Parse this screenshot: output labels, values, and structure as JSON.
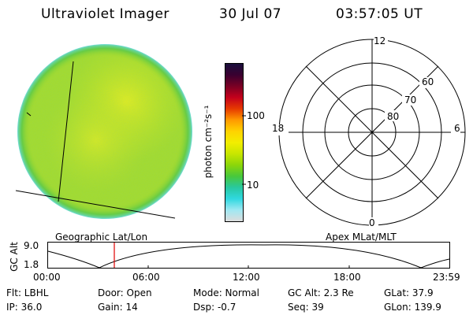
{
  "header": {
    "title": "Ultraviolet Imager",
    "date": "30 Jul 07",
    "time": "03:57:05 UT"
  },
  "colorbar": {
    "unit_label": "photon cm⁻²s⁻¹",
    "tick_100": "100",
    "tick_10": "10",
    "colors": [
      "#1a0f3c",
      "#3a0030",
      "#7a0024",
      "#c4001c",
      "#e63a00",
      "#ff9a00",
      "#ffd200",
      "#f2ee00",
      "#c8e600",
      "#8cd60a",
      "#48c83c",
      "#28c8a0",
      "#30d8e0",
      "#a0e8f2",
      "#dcdcdc"
    ]
  },
  "polar": {
    "mlt_top": "12",
    "mlt_left": "18",
    "mlt_right": "6",
    "mlt_bottom": "0",
    "lat_60": "60",
    "lat_70": "70",
    "lat_80": "80"
  },
  "strip": {
    "left_caption": "Geographic Lat/Lon",
    "right_caption": "Apex MLat/MLT",
    "y_axis_label": "GC Alt",
    "y_tick_top": "9.0",
    "y_tick_bottom": "1.8",
    "x_ticks": [
      "00:00",
      "06:00",
      "12:00",
      "18:00",
      "23:59"
    ],
    "marker_color": "#e00000"
  },
  "info": {
    "row1": {
      "flt": "Flt: LBHL",
      "door": "Door: Open",
      "mode": "Mode: Normal",
      "gcalt": "GC Alt: 2.3 Re",
      "glat": "GLat:  37.9"
    },
    "row2": {
      "ip": "IP: 36.0",
      "gain": "Gain: 14",
      "dsp": "Dsp:   -0.7",
      "seq": "Seq: 39",
      "glon": "GLon: 139.9"
    }
  }
}
